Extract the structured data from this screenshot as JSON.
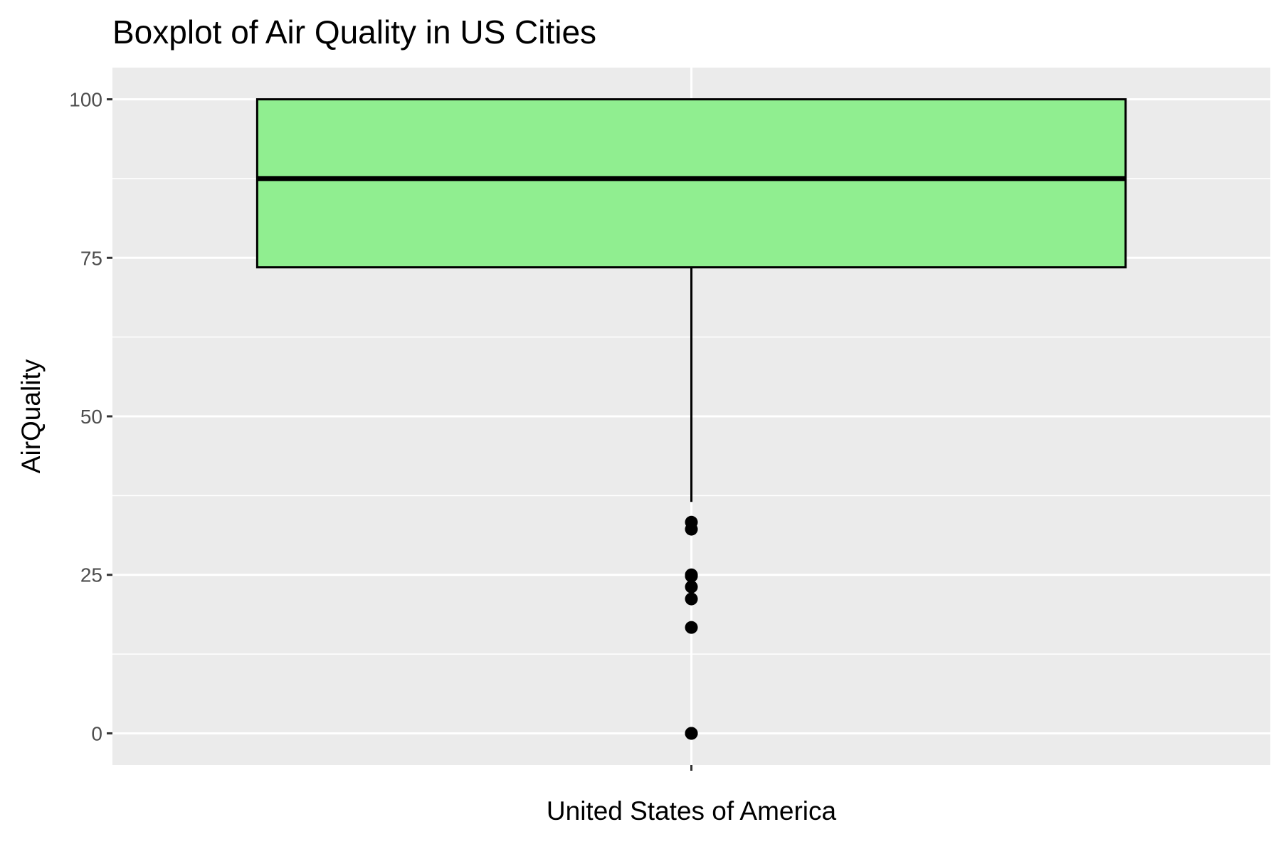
{
  "chart_data": {
    "type": "boxplot",
    "title": "Boxplot of Air Quality in US Cities",
    "xlabel": "",
    "ylabel": "AirQuality",
    "categories": [
      "United States of America"
    ],
    "ylim": [
      -5,
      105
    ],
    "yticks": [
      0,
      25,
      50,
      75,
      100
    ],
    "grid": true,
    "colors": {
      "panel_background": "#EBEBEB",
      "grid": "#FFFFFF",
      "box_fill": "#90EE90",
      "box_stroke": "#000000",
      "outlier": "#000000"
    },
    "boxes": [
      {
        "category": "United States of America",
        "lower_whisker": 36.5,
        "q1": 73.5,
        "median": 87.5,
        "q3": 100,
        "upper_whisker": 100,
        "outliers": [
          33.3,
          32.2,
          25.0,
          24.8,
          23.1,
          21.2,
          16.7,
          0,
          0
        ]
      }
    ]
  }
}
